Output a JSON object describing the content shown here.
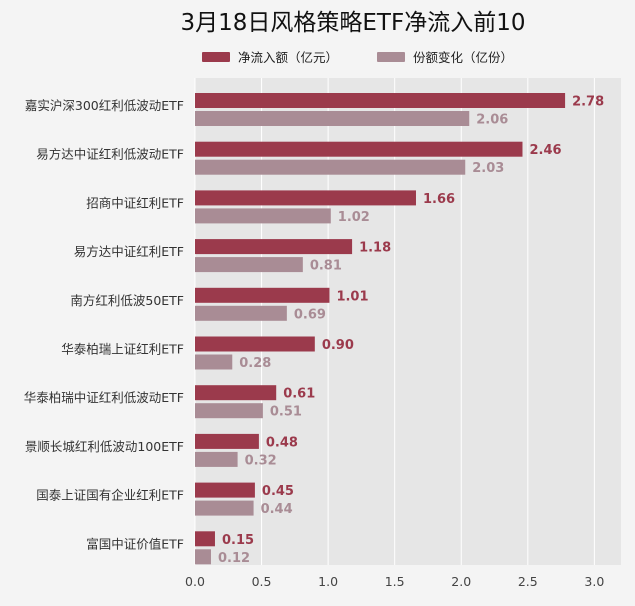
{
  "chart_data": {
    "type": "bar",
    "orientation": "horizontal",
    "title": "3月18日风格策略ETF净流入前10",
    "categories": [
      "嘉实沪深300红利低波动ETF",
      "易方达中证红利低波动ETF",
      "招商中证红利ETF",
      "易方达中证红利ETF",
      "南方红利低波50ETF",
      "华泰柏瑞上证红利ETF",
      "华泰柏瑞中证红利低波动ETF",
      "景顺长城红利低波动100ETF",
      "国泰上证国有企业红利ETF",
      "富国中证价值ETF"
    ],
    "series": [
      {
        "name": "净流入额（亿元）",
        "color": "#9b3a4c",
        "values": [
          2.78,
          2.46,
          1.66,
          1.18,
          1.01,
          0.9,
          0.61,
          0.48,
          0.45,
          0.15
        ],
        "labels": [
          "2.78",
          "2.46",
          "1.66",
          "1.18",
          "1.01",
          "0.90",
          "0.61",
          "0.48",
          "0.45",
          "0.15"
        ]
      },
      {
        "name": "份额变化（亿份）",
        "color": "#a98c95",
        "values": [
          2.06,
          2.03,
          1.02,
          0.81,
          0.69,
          0.28,
          0.51,
          0.32,
          0.44,
          0.12
        ],
        "labels": [
          "2.06",
          "2.03",
          "1.02",
          "0.81",
          "0.69",
          "0.28",
          "0.51",
          "0.32",
          "0.44",
          "0.12"
        ]
      }
    ],
    "xlim": [
      0,
      3.2
    ],
    "xticks": [
      0,
      0.5,
      1,
      1.5,
      2,
      2.5,
      3
    ],
    "xtick_labels": [
      "0.0",
      "0.5",
      "1.0",
      "1.5",
      "2.0",
      "2.5",
      "3.0"
    ],
    "grid": true,
    "legend_position": "top-center",
    "colors": {
      "background": "#f4f4f4",
      "plot_background": "#e6e6e6",
      "grid": "#ffffff"
    }
  }
}
